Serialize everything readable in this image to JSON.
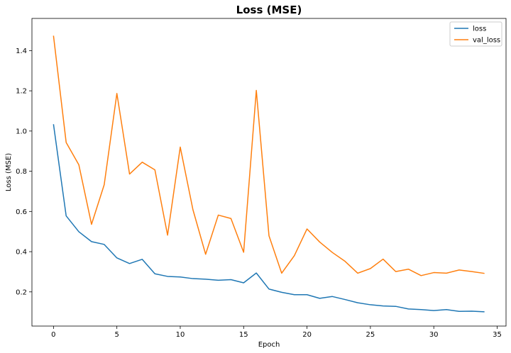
{
  "chart_data": {
    "type": "line",
    "title": "Loss (MSE)",
    "xlabel": "Epoch",
    "ylabel": "Loss (MSE)",
    "xlim": [
      -1.7,
      35.7
    ],
    "ylim": [
      0.03,
      1.56
    ],
    "xticks": [
      0,
      5,
      10,
      15,
      20,
      25,
      30,
      35
    ],
    "yticks": [
      0.2,
      0.4,
      0.6,
      0.8,
      1.0,
      1.2,
      1.4
    ],
    "ytick_labels": [
      "0.2",
      "0.4",
      "0.6",
      "0.8",
      "1.0",
      "1.2",
      "1.4"
    ],
    "grid": false,
    "legend_position": "top-right",
    "x": [
      0,
      1,
      2,
      3,
      4,
      5,
      6,
      7,
      8,
      9,
      10,
      11,
      12,
      13,
      14,
      15,
      16,
      17,
      18,
      19,
      20,
      21,
      22,
      23,
      24,
      25,
      26,
      27,
      28,
      29,
      30,
      31,
      32,
      33,
      34
    ],
    "series": [
      {
        "name": "loss",
        "color": "#1f77b4",
        "values": [
          1.034,
          0.578,
          0.499,
          0.45,
          0.436,
          0.369,
          0.341,
          0.362,
          0.29,
          0.277,
          0.274,
          0.266,
          0.263,
          0.258,
          0.261,
          0.245,
          0.294,
          0.214,
          0.198,
          0.186,
          0.186,
          0.168,
          0.177,
          0.162,
          0.146,
          0.136,
          0.13,
          0.128,
          0.115,
          0.112,
          0.107,
          0.112,
          0.103,
          0.104,
          0.101
        ]
      },
      {
        "name": "val_loss",
        "color": "#ff7f0e",
        "values": [
          1.474,
          0.943,
          0.832,
          0.536,
          0.733,
          1.187,
          0.786,
          0.845,
          0.807,
          0.482,
          0.92,
          0.609,
          0.387,
          0.582,
          0.565,
          0.397,
          1.202,
          0.479,
          0.293,
          0.38,
          0.513,
          0.448,
          0.396,
          0.352,
          0.293,
          0.316,
          0.363,
          0.301,
          0.313,
          0.281,
          0.296,
          0.293,
          0.309,
          0.301,
          0.292
        ]
      }
    ]
  }
}
